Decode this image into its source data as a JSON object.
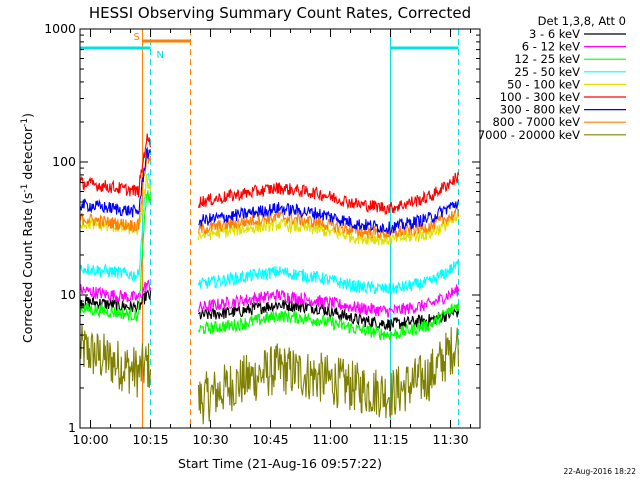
{
  "chart_data": {
    "type": "line",
    "title": "HESSI Observing Summary Count Rates, Corrected",
    "xlabel": "Start Time (21-Aug-16 09:57:22)",
    "ylabel": "Corrected Count Rate (s",
    "ylabel_exp1": "-1",
    "ylabel_mid": " detector",
    "ylabel_exp2": "-1",
    "ylabel_end": ")",
    "yscale": "log",
    "ylim": [
      1,
      1000
    ],
    "y_ticks": [
      1,
      10,
      100,
      1000
    ],
    "y_tick_labels": [
      "1",
      "10",
      "100",
      "1000"
    ],
    "x_tick_labels": [
      "10:00",
      "10:15",
      "10:30",
      "10:45",
      "11:00",
      "11:15",
      "11:30"
    ],
    "xlim": [
      "09:57:22",
      "11:37:22"
    ],
    "legend_header": "Det 1,3,8, Att 0",
    "legend_position": "right",
    "date_stamp": "22-Aug-2016 18:22",
    "flags": [
      {
        "label": "S",
        "start": "10:13",
        "end": "10:25",
        "color": "#ff8000"
      },
      {
        "label": "N",
        "start": "09:57:22",
        "end": "10:15",
        "color": "#00e0e0"
      },
      {
        "label": "",
        "start": "11:15",
        "end": "11:32",
        "color": "#00e0e0"
      }
    ],
    "markers": [
      {
        "time": "10:13",
        "color": "#ff8000",
        "style": "solid"
      },
      {
        "time": "10:15",
        "color": "#00e0e0",
        "style": "dashed"
      },
      {
        "time": "10:25",
        "color": "#ff8000",
        "style": "dashed"
      },
      {
        "time": "11:15",
        "color": "#00e0e0",
        "style": "solid"
      },
      {
        "time": "11:32",
        "color": "#00e0e0",
        "style": "dashed"
      }
    ],
    "gap": {
      "start": "10:15",
      "end": "10:27"
    },
    "time_samples": [
      "09:57",
      "10:05",
      "10:12",
      "10:14",
      "10:27",
      "10:37",
      "10:47",
      "10:57",
      "11:07",
      "11:15",
      "11:25",
      "11:32"
    ],
    "series": [
      {
        "name": "3 - 6 keV",
        "color": "#000000",
        "values": [
          9,
          8.5,
          8,
          10,
          7,
          7.5,
          8.5,
          8,
          6.5,
          6,
          6.5,
          7.5
        ]
      },
      {
        "name": "6 - 12 keV",
        "color": "#ff00ff",
        "values": [
          11,
          10,
          9.5,
          12,
          8,
          9,
          10,
          9,
          8,
          7.5,
          8.5,
          11
        ]
      },
      {
        "name": "12 - 25 keV",
        "color": "#00ff00",
        "values": [
          8,
          7.5,
          7,
          60,
          5.5,
          6,
          7,
          6.5,
          5.5,
          5,
          6,
          8.5
        ]
      },
      {
        "name": "25 - 50 keV",
        "color": "#00ffff",
        "values": [
          16,
          15,
          14,
          80,
          12,
          13.5,
          15,
          13.5,
          11.5,
          11,
          12.5,
          17
        ]
      },
      {
        "name": "50 - 100 keV",
        "color": "#e0e000",
        "values": [
          35,
          33,
          31,
          70,
          28,
          31,
          34,
          31,
          27,
          26,
          29,
          38
        ]
      },
      {
        "name": "100 - 300 keV",
        "color": "#ff0000",
        "values": [
          70,
          65,
          60,
          150,
          50,
          57,
          64,
          58,
          48,
          45,
          55,
          78
        ]
      },
      {
        "name": "300 - 800 keV",
        "color": "#0000ff",
        "values": [
          48,
          45,
          42,
          120,
          36,
          40,
          45,
          41,
          34,
          32,
          38,
          50
        ]
      },
      {
        "name": "800 - 7000 keV",
        "color": "#ff8000",
        "values": [
          38,
          35,
          33,
          110,
          31,
          35,
          39,
          35,
          30,
          29,
          33,
          42
        ]
      },
      {
        "name": "7000 - 20000 keV",
        "color": "#808000",
        "values": [
          4,
          3.2,
          2.6,
          3,
          1.6,
          2.2,
          2.8,
          2.4,
          2,
          1.8,
          2.5,
          4.5
        ]
      }
    ]
  }
}
